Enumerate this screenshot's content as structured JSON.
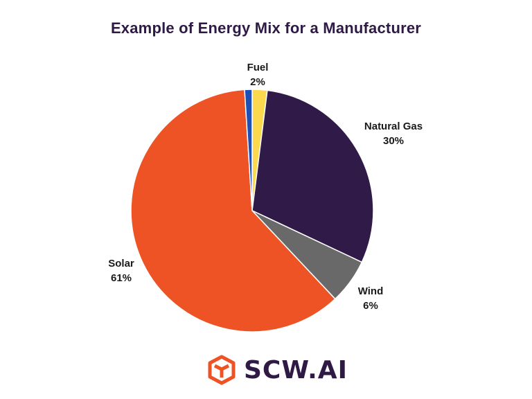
{
  "chart_data": {
    "type": "pie",
    "title": "Example of Energy Mix for a Manufacturer",
    "slices": [
      {
        "label": "Fuel",
        "value": 2,
        "value_text": "2%",
        "color": "#fcd84e"
      },
      {
        "label": "Natural Gas",
        "value": 30,
        "value_text": "30%",
        "color": "#301a48"
      },
      {
        "label": "Wind",
        "value": 6,
        "value_text": "6%",
        "color": "#696969"
      },
      {
        "label": "Solar",
        "value": 61,
        "value_text": "61%",
        "color": "#ed5324"
      },
      {
        "label": "",
        "value": 1,
        "value_text": "",
        "color": "#1e4fb4"
      }
    ],
    "start_angle_deg": 0,
    "direction": "clockwise"
  },
  "branding": {
    "logo_text": "SCW.AI",
    "logo_color": "#2f1a45",
    "logo_mark_color": "#ed5324"
  }
}
